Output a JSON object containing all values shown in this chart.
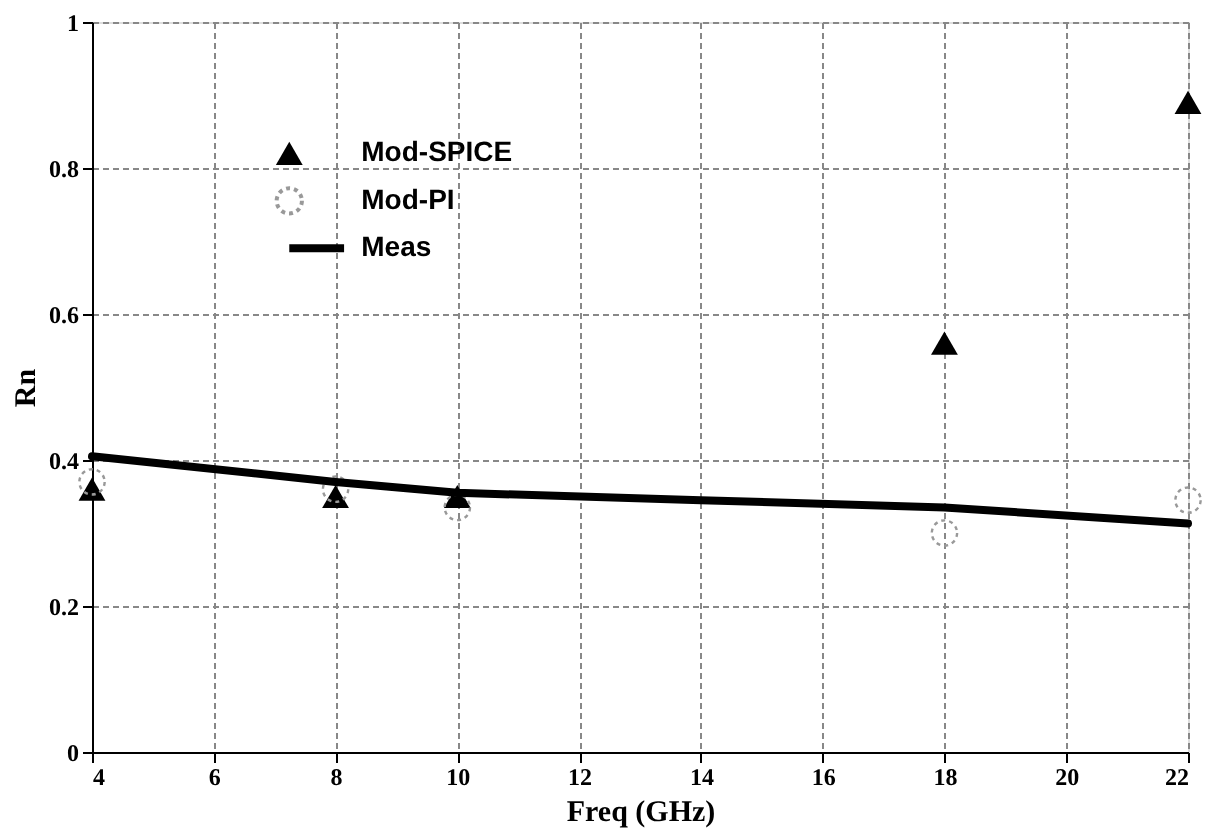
{
  "chart_data": {
    "type": "scatter",
    "xlabel": "Freq (GHz)",
    "ylabel": "Rn",
    "xlim": [
      4,
      22
    ],
    "xticks": [
      4,
      6,
      8,
      10,
      12,
      14,
      16,
      18,
      20,
      22
    ],
    "ylim": [
      0,
      1
    ],
    "yticks": [
      0,
      0.2,
      0.4,
      0.6,
      0.8,
      1
    ],
    "grid": true,
    "legend": "top left",
    "series": [
      {
        "name": "Mod-SPICE",
        "type": "scatter",
        "marker": "triangle",
        "color": "#000000",
        "x": [
          4,
          8,
          10,
          18,
          22
        ],
        "values": [
          0.36,
          0.35,
          0.35,
          0.56,
          0.89
        ]
      },
      {
        "name": "Mod-PI",
        "type": "scatter",
        "marker": "circle",
        "color": "#999999",
        "x": [
          4,
          8,
          10,
          18,
          22
        ],
        "values": [
          0.37,
          0.36,
          0.335,
          0.3,
          0.345
        ]
      },
      {
        "name": "Meas",
        "type": "line",
        "marker": "none",
        "color": "#000000",
        "x": [
          4,
          8,
          10,
          14,
          18,
          22
        ],
        "values": [
          0.405,
          0.37,
          0.355,
          0.345,
          0.335,
          0.313
        ]
      }
    ]
  }
}
